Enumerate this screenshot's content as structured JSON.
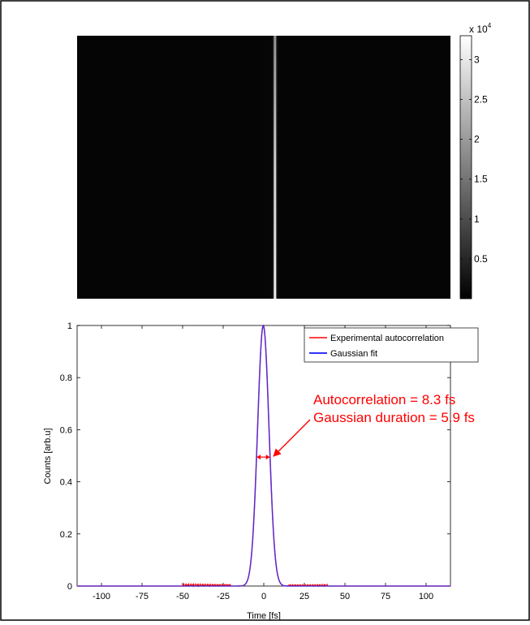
{
  "figure": {
    "colorbar_exponent_base": "x 10",
    "colorbar_exponent_power": "4"
  },
  "chart_data": [
    {
      "type": "heatmap",
      "description_values": "camera image of autocorrelation trace, bright vertical line near center",
      "colorscale": "gray",
      "colorbar_range": [
        0,
        33000
      ],
      "colorbar_ticks": [
        5000,
        10000,
        15000,
        20000,
        25000,
        30000
      ],
      "colorbar_tick_labels": [
        "0.5",
        "1",
        "1.5",
        "2",
        "2.5",
        "3"
      ],
      "line_center_fraction": 0.53,
      "axes_visible": false
    },
    {
      "type": "line",
      "title": "",
      "xlabel": "Time [fs]",
      "ylabel": "Counts [arb.u]",
      "xlim": [
        -115,
        115
      ],
      "ylim": [
        0,
        1
      ],
      "xticks": [
        -100,
        -75,
        -50,
        -25,
        0,
        25,
        50,
        75,
        100
      ],
      "xtick_labels": [
        "-100",
        "-75",
        "-50",
        "-25",
        "0",
        "25",
        "50",
        "75",
        "100"
      ],
      "yticks": [
        0,
        0.2,
        0.4,
        0.6,
        0.8,
        1
      ],
      "ytick_labels": [
        "0",
        "0.2",
        "0.4",
        "0.6",
        "0.8",
        "1"
      ],
      "grid": false,
      "legend_position": "top-right",
      "series": [
        {
          "name": "Experimental autocorrelation",
          "color": "#ff0000",
          "fwhm_fs": 8.3,
          "center": -0.3
        },
        {
          "name": "Gaussian fit",
          "color": "#3333ff",
          "fwhm_fs": 8.3,
          "center": -0.3
        }
      ],
      "annotation": {
        "line1": "Autocorrelation = 8.3 fs",
        "line2": "Gaussian duration = 5.9 fs",
        "color": "#ff0000",
        "arrow_target": {
          "x": 4.5,
          "y": 0.495
        },
        "fwhm_marker_y": 0.495
      }
    }
  ]
}
